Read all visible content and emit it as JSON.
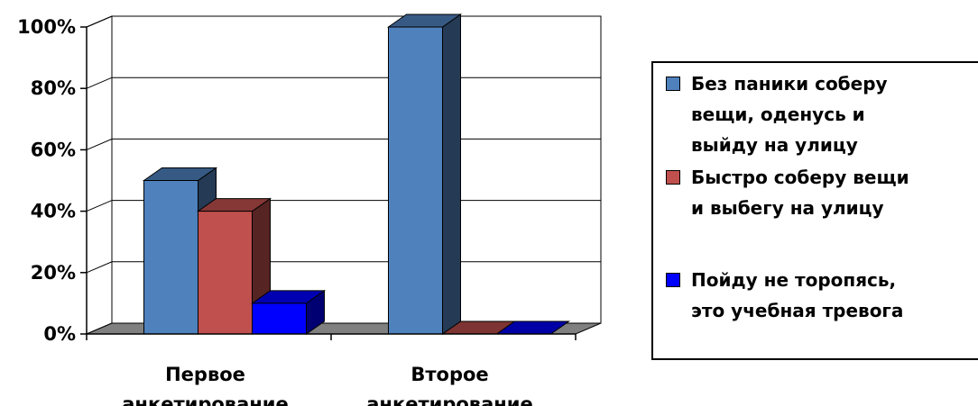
{
  "chart_data": {
    "type": "bar",
    "categories": [
      "Первое анкетирование",
      "Второе анкетирование"
    ],
    "category_lines": [
      [
        "Первое",
        "анкетирование"
      ],
      [
        "Второе",
        "анкетирование"
      ]
    ],
    "series": [
      {
        "name": "Без паники соберу вещи, оденусь и выйду на улицу",
        "color": "#4f81bd",
        "values": [
          50,
          100
        ]
      },
      {
        "name": "Быстро соберу вещи и выбегу на улицу",
        "color": "#c0504d",
        "values": [
          40,
          0
        ]
      },
      {
        "name": "Пойду не торопясь, это учебная тревога",
        "color": "#0000ff",
        "values": [
          10,
          0
        ]
      }
    ],
    "y_ticks": [
      "0%",
      "20%",
      "40%",
      "60%",
      "80%",
      "100%"
    ],
    "ylim": [
      0,
      100
    ],
    "grid": true,
    "legend": "right",
    "three_d": true
  },
  "legend": {
    "items": [
      {
        "lines": [
          "Без паники соберу",
          "вещи, оденусь и",
          "выйду на улицу"
        ]
      },
      {
        "lines": [
          "Быстро соберу вещи",
          "и выбегу на улицу"
        ]
      },
      {
        "lines": [
          "Пойду не торопясь,",
          "это учебная тревога"
        ]
      }
    ]
  }
}
